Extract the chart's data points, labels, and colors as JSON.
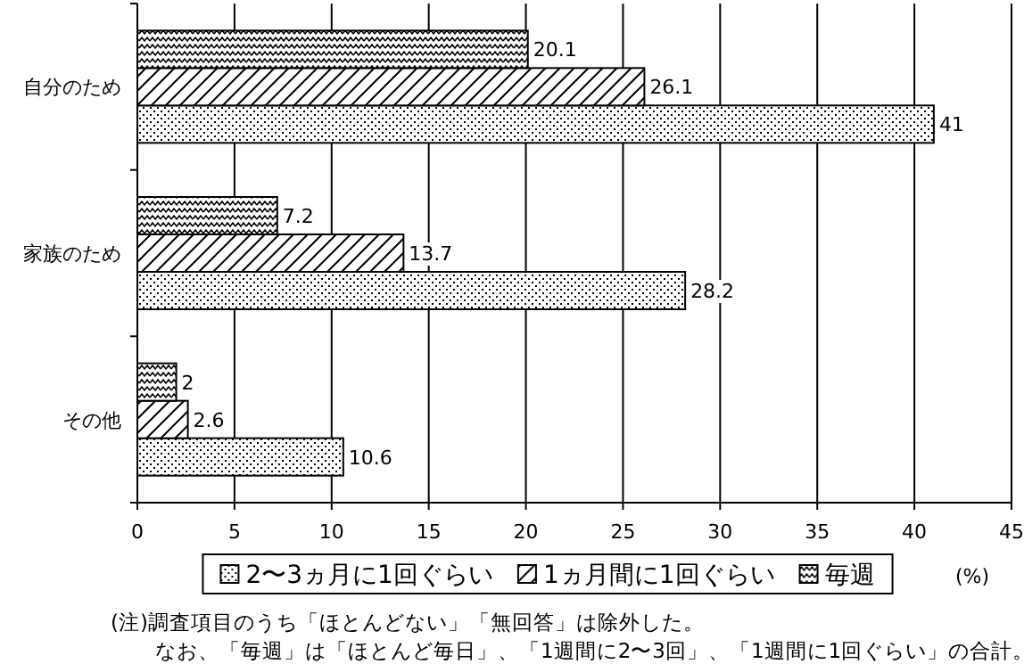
{
  "chart_data": {
    "type": "bar",
    "orientation": "horizontal",
    "categories": [
      "自分のため",
      "家族のため",
      "その他"
    ],
    "series": [
      {
        "name": "2〜3ヵ月に1回ぐらい",
        "color": "#000000",
        "values": [
          41,
          28.2,
          10.6
        ]
      },
      {
        "name": "1ヵ月間に1回ぐらい",
        "color": "#000000",
        "values": [
          26.1,
          13.7,
          2.6
        ]
      },
      {
        "name": "毎週",
        "color": "#000000",
        "values": [
          20.1,
          7.2,
          2
        ]
      }
    ],
    "xlabel": "(%)",
    "xlim": [
      0,
      45
    ],
    "xticks": [
      0,
      5,
      10,
      15,
      20,
      25,
      30,
      35,
      40,
      45
    ],
    "grid": "x",
    "legend": "bottom",
    "data_labels": true,
    "annotations": [
      "(注)調査項目のうち「ほとんどない」「無回答」は除外した。",
      "なお、「毎週」は「ほとんど毎日」、「1週間に2〜3回」、「1週間に1回ぐらい」の合計。"
    ]
  }
}
